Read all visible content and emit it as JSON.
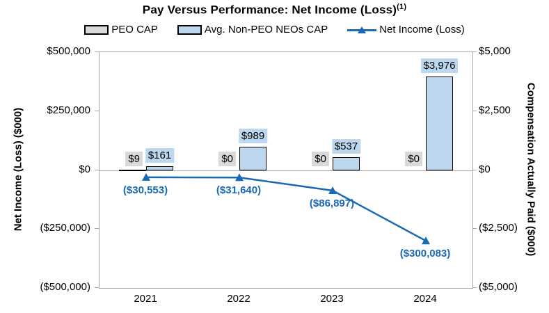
{
  "title": {
    "text": "Pay Versus Performance: Net Income (Loss)",
    "superscript": "(1)"
  },
  "legend": [
    {
      "label": "PEO CAP",
      "swatch": "bar",
      "fill": "#D9D9D9"
    },
    {
      "label": "Avg. Non-PEO NEOs CAP",
      "swatch": "bar",
      "fill": "#BDD7EE"
    },
    {
      "label": "Net Income (Loss)",
      "swatch": "line",
      "color": "#1A69B4"
    }
  ],
  "colors": {
    "peo_fill": "#D9D9D9",
    "avg_fill": "#BDD7EE",
    "bar_border": "#000000",
    "line_blue": "#1A69B4",
    "axis_gray": "#A6A6A6"
  },
  "chart_data": {
    "type": "bar+line",
    "categories": [
      "2021",
      "2022",
      "2023",
      "2024"
    ],
    "series": [
      {
        "name": "PEO CAP",
        "type": "bar",
        "axis": "right",
        "values": [
          9,
          0,
          0,
          0
        ],
        "labels": [
          "$9",
          "$0",
          "$0",
          "$0"
        ],
        "fill": "#D9D9D9"
      },
      {
        "name": "Avg. Non-PEO NEOs CAP",
        "type": "bar",
        "axis": "right",
        "values": [
          161,
          989,
          537,
          3976
        ],
        "labels": [
          "$161",
          "$989",
          "$537",
          "$3,976"
        ],
        "fill": "#BDD7EE"
      },
      {
        "name": "Net Income (Loss)",
        "type": "line",
        "axis": "left",
        "values": [
          -30553,
          -31640,
          -86897,
          -300083
        ],
        "labels": [
          "($30,553)",
          "($31,640)",
          "($86,897)",
          "($300,083)"
        ],
        "color": "#1A69B4"
      }
    ],
    "left_axis": {
      "title": "Net Income (Loss) ($000)",
      "min": -500000,
      "max": 500000,
      "ticks": [
        "$500,000",
        "$250,000",
        "$0",
        "($250,000)",
        "($500,000)"
      ]
    },
    "right_axis": {
      "title": "Compensation Actually Paid ($000)",
      "min": -5000,
      "max": 5000,
      "ticks": [
        "$5,000",
        "$2,500",
        "$0",
        "($2,500)",
        "($5,000)"
      ]
    },
    "grid": "zero-line-only",
    "legend_position": "top"
  }
}
